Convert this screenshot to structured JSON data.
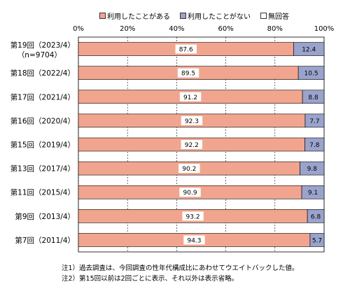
{
  "chart_data": {
    "type": "bar",
    "orientation": "horizontal",
    "stacked": true,
    "categories": [
      [
        "第19回（2023/4）",
        "（n=9704）"
      ],
      [
        "第18回（2022/4）"
      ],
      [
        "第17回（2021/4）"
      ],
      [
        "第16回（2020/4）"
      ],
      [
        "第15回（2019/4）"
      ],
      [
        "第13回（2017/4）"
      ],
      [
        "第11回（2015/4）"
      ],
      [
        "第9回（2013/4）"
      ],
      [
        "第7回（2011/4）"
      ]
    ],
    "series": [
      {
        "name": "利用したことがある",
        "color": "#f2a58e",
        "values": [
          87.6,
          89.5,
          91.2,
          92.3,
          92.2,
          90.2,
          90.9,
          93.2,
          94.3
        ]
      },
      {
        "name": "利用したことがない",
        "color": "#9aa3cc",
        "values": [
          12.4,
          10.5,
          8.8,
          7.7,
          7.8,
          9.8,
          9.1,
          6.8,
          5.7
        ]
      },
      {
        "name": "無回答",
        "color": "#ffffff",
        "values": [
          0,
          0,
          0,
          0,
          0,
          0,
          0,
          0,
          0
        ]
      }
    ],
    "x_ticks": [
      "0%",
      "20%",
      "40%",
      "60%",
      "80%",
      "100%"
    ],
    "xlim": [
      0,
      100
    ],
    "grid": true,
    "legend_position": "top"
  },
  "notes": [
    "注1）過去調査は、今回調査の性年代構成比にあわせてウエイトバックした値。",
    "注2）第15回以前は2回ごとに表示、それ以外は表示省略。"
  ]
}
